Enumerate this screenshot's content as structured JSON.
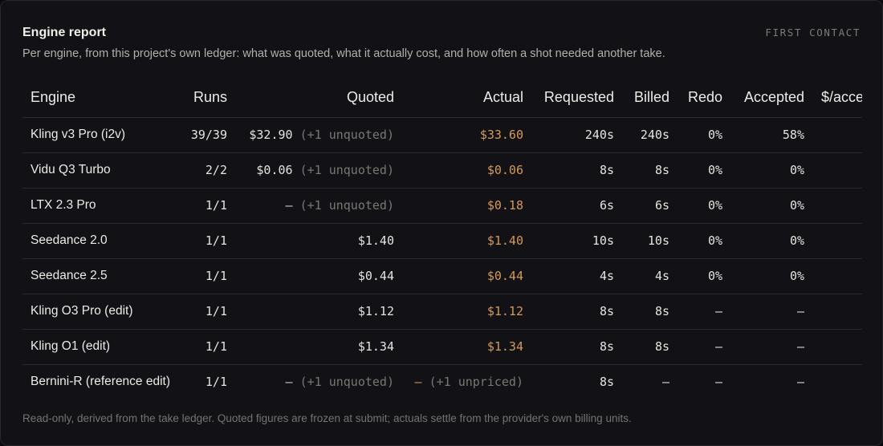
{
  "header": {
    "title": "Engine report",
    "tag": "FIRST CONTACT",
    "subtitle": "Per engine, from this project's own ledger: what was quoted, what it actually cost, and how often a shot needed another take."
  },
  "table": {
    "columns": {
      "engine": "Engine",
      "runs": "Runs",
      "quoted": "Quoted",
      "actual": "Actual",
      "requested": "Requested",
      "billed": "Billed",
      "redo": "Redo",
      "accepted": "Accepted",
      "per_accepted": "$/accepted"
    },
    "rows": [
      {
        "engine": "Kling v3 Pro (i2v)",
        "runs": "39/39",
        "quoted": "$32.90",
        "quoted_note": "(+1 unquoted)",
        "actual": "$33.60",
        "actual_note": "",
        "requested": "240s",
        "billed": "240s",
        "redo": "0%",
        "accepted": "58%",
        "per_accepted": ""
      },
      {
        "engine": "Vidu Q3 Turbo",
        "runs": "2/2",
        "quoted": "$0.06",
        "quoted_note": "(+1 unquoted)",
        "actual": "$0.06",
        "actual_note": "",
        "requested": "8s",
        "billed": "8s",
        "redo": "0%",
        "accepted": "0%",
        "per_accepted": ""
      },
      {
        "engine": "LTX 2.3 Pro",
        "runs": "1/1",
        "quoted": "—",
        "quoted_note": "(+1 unquoted)",
        "actual": "$0.18",
        "actual_note": "",
        "requested": "6s",
        "billed": "6s",
        "redo": "0%",
        "accepted": "0%",
        "per_accepted": ""
      },
      {
        "engine": "Seedance 2.0",
        "runs": "1/1",
        "quoted": "$1.40",
        "quoted_note": "",
        "actual": "$1.40",
        "actual_note": "",
        "requested": "10s",
        "billed": "10s",
        "redo": "0%",
        "accepted": "0%",
        "per_accepted": ""
      },
      {
        "engine": "Seedance 2.5",
        "runs": "1/1",
        "quoted": "$0.44",
        "quoted_note": "",
        "actual": "$0.44",
        "actual_note": "",
        "requested": "4s",
        "billed": "4s",
        "redo": "0%",
        "accepted": "0%",
        "per_accepted": ""
      },
      {
        "engine": "Kling O3 Pro (edit)",
        "runs": "1/1",
        "quoted": "$1.12",
        "quoted_note": "",
        "actual": "$1.12",
        "actual_note": "",
        "requested": "8s",
        "billed": "8s",
        "redo": "—",
        "accepted": "—",
        "per_accepted": ""
      },
      {
        "engine": "Kling O1 (edit)",
        "runs": "1/1",
        "quoted": "$1.34",
        "quoted_note": "",
        "actual": "$1.34",
        "actual_note": "",
        "requested": "8s",
        "billed": "8s",
        "redo": "—",
        "accepted": "—",
        "per_accepted": ""
      },
      {
        "engine": "Bernini-R (reference edit)",
        "runs": "1/1",
        "quoted": "—",
        "quoted_note": "(+1 unquoted)",
        "actual": "—",
        "actual_note": "(+1 unpriced)",
        "requested": "8s",
        "billed": "—",
        "redo": "—",
        "accepted": "—",
        "per_accepted": ""
      }
    ]
  },
  "footer": {
    "note": "Read-only, derived from the take ledger. Quoted figures are frozen at submit; actuals settle from the provider's own billing units."
  },
  "colors": {
    "background": "#111116",
    "actual_accent": "#d49a5c",
    "muted_text": "#7a7873"
  }
}
